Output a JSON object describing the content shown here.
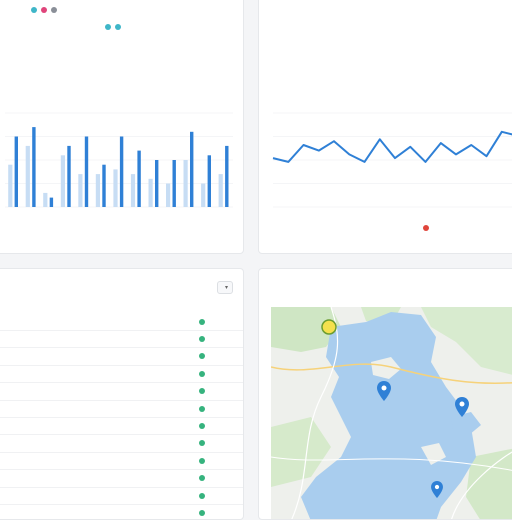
{
  "bar_card": {
    "legend": [
      {
        "label": "",
        "color": "#3fb6c8"
      },
      {
        "label": "",
        "color": "#e0457b"
      },
      {
        "label": "",
        "color": "#8a8f98"
      }
    ],
    "legend2": [
      {
        "label": "",
        "color": "#3fb6c8"
      },
      {
        "label": "",
        "color": "#3fb6c8"
      }
    ],
    "footer_text": ""
  },
  "line_card": {
    "footer_legend": {
      "label": "",
      "color": "#e0453b"
    }
  },
  "list_card": {
    "title": "",
    "filter_chip": "",
    "rows": [
      {
        "label": "",
        "status_color": "#36b37e"
      },
      {
        "label": "",
        "status_color": "#36b37e"
      },
      {
        "label": "",
        "status_color": "#36b37e"
      },
      {
        "label": "",
        "status_color": "#36b37e"
      },
      {
        "label": "",
        "status_color": "#36b37e"
      },
      {
        "label": "",
        "status_color": "#36b37e"
      },
      {
        "label": "",
        "status_color": "#36b37e"
      },
      {
        "label": "",
        "status_color": "#36b37e"
      },
      {
        "label": "",
        "status_color": "#36b37e"
      },
      {
        "label": "",
        "status_color": "#36b37e"
      },
      {
        "label": "",
        "status_color": "#36b37e"
      },
      {
        "label": "",
        "status_color": "#36b37e"
      }
    ]
  },
  "map_card": {
    "title": "",
    "markers": [
      "map-pin-icon",
      "map-pin-icon",
      "map-pin-icon",
      "map-pin-icon"
    ]
  },
  "chart_data": [
    {
      "type": "bar",
      "series": [
        {
          "name": "",
          "color": "#2f80d6",
          "values": [
            15,
            17,
            2,
            13,
            15,
            9,
            15,
            12,
            10,
            10,
            16,
            11,
            13
          ]
        },
        {
          "name": "",
          "color": "#c7ddf4",
          "values": [
            9,
            13,
            3,
            11,
            7,
            7,
            8,
            7,
            6,
            5,
            10,
            5,
            7
          ]
        }
      ],
      "ylim": [
        0,
        20
      ],
      "grid": true
    },
    {
      "type": "line",
      "color": "#2f80d6",
      "y": [
        26,
        24,
        33,
        30,
        35,
        28,
        24,
        36,
        26,
        32,
        24,
        34,
        28,
        33,
        27,
        40,
        38
      ],
      "ylim": [
        0,
        50
      ],
      "grid": true
    }
  ]
}
